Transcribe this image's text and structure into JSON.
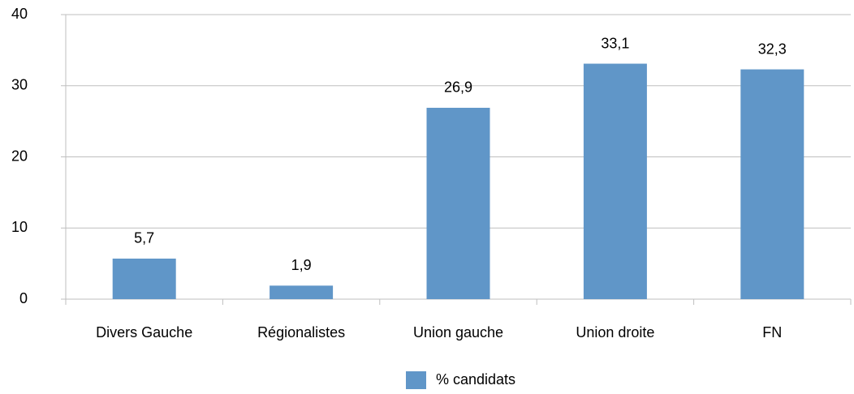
{
  "chart_data": {
    "type": "bar",
    "categories": [
      "Divers Gauche",
      "Régionalistes",
      "Union gauche",
      "Union droite",
      "FN"
    ],
    "series": [
      {
        "name": "% candidats",
        "color": "#6096c8",
        "values": [
          5.7,
          1.9,
          26.9,
          33.1,
          32.3
        ],
        "value_labels": [
          "5,7",
          "1,9",
          "26,9",
          "33,1",
          "32,3"
        ]
      }
    ],
    "ylim": [
      0,
      40
    ],
    "yticks": [
      0,
      10,
      20,
      30,
      40
    ],
    "grid": true,
    "legend": "bottom"
  }
}
